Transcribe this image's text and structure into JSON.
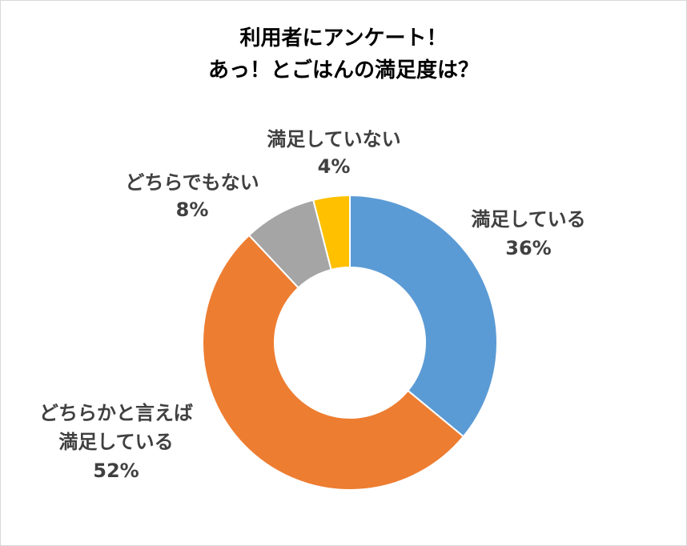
{
  "chart_data": {
    "type": "pie",
    "title_lines": [
      "利用者にアンケート！",
      "あっ！とごはんの満足度は？"
    ],
    "series": [
      {
        "label_lines": [
          "満足している"
        ],
        "value": 36,
        "value_label": "36%",
        "color": "#5B9BD5"
      },
      {
        "label_lines": [
          "どちらかと言えば",
          "満足している"
        ],
        "value": 52,
        "value_label": "52%",
        "color": "#ED7D31"
      },
      {
        "label_lines": [
          "どちらでもない"
        ],
        "value": 8,
        "value_label": "8%",
        "color": "#A5A5A5"
      },
      {
        "label_lines": [
          "満足していない"
        ],
        "value": 4,
        "value_label": "4%",
        "color": "#FFC000"
      }
    ]
  }
}
